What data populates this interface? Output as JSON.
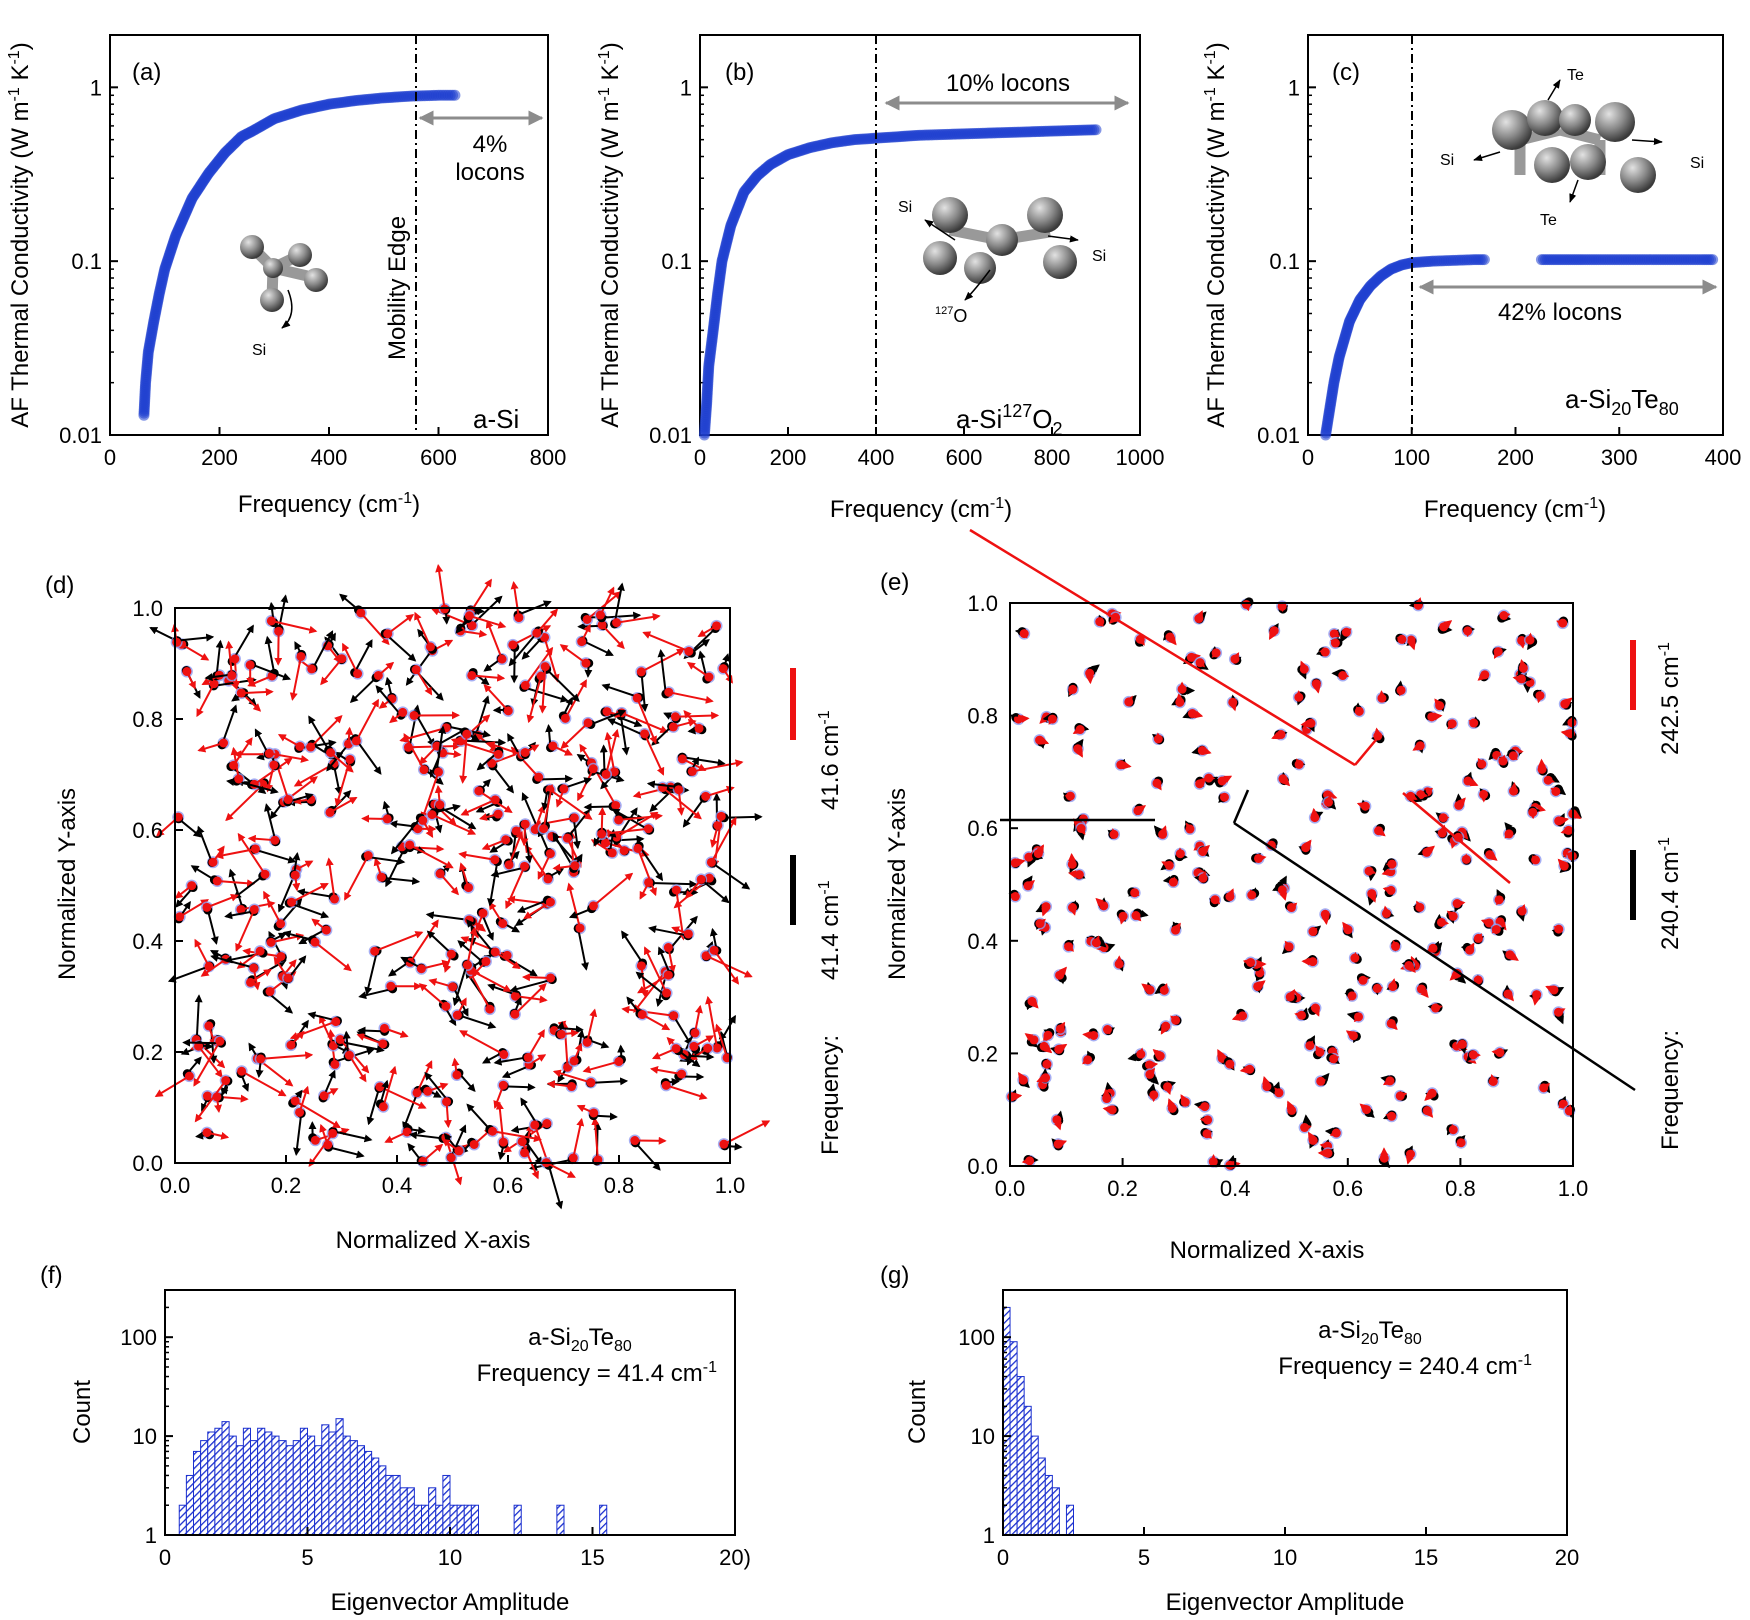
{
  "chart_data": [
    {
      "id": "a",
      "type": "scatter",
      "panel_label": "(a)",
      "xlabel": "Frequency (cm",
      "xlabel_sup": "-1",
      "xlabel_end": ")",
      "ylabel": "AF Thermal Conductivity (W m",
      "ylabel_sup1": "-1",
      "ylabel_mid": " K",
      "ylabel_sup2": "-1",
      "ylabel_end": ")",
      "xlim": [
        0,
        800
      ],
      "ylim": [
        0.01,
        2
      ],
      "yscale": "log",
      "xticks": [
        "0",
        "200",
        "400",
        "600",
        "800"
      ],
      "yticks": [
        {
          "value": 0.01,
          "label": "0.01"
        },
        {
          "value": 0.1,
          "label": "0.1"
        },
        {
          "value": 1,
          "label": "1"
        }
      ],
      "mobility_edge": 550,
      "mobility_edge_label": "Mobility Edge",
      "locon_label_1": "4%",
      "locon_label_2": "locons",
      "locon_range": [
        555,
        790
      ],
      "material": "a-Si",
      "atom_label_si": "Si",
      "series": [
        {
          "name": "AF kappa",
          "x": [
            62,
            65,
            70,
            80,
            90,
            100,
            120,
            150,
            180,
            210,
            240,
            260,
            300,
            350,
            400,
            450,
            500,
            550,
            600,
            630
          ],
          "y": [
            0.013,
            0.02,
            0.03,
            0.045,
            0.065,
            0.09,
            0.14,
            0.23,
            0.32,
            0.42,
            0.52,
            0.56,
            0.66,
            0.74,
            0.8,
            0.84,
            0.87,
            0.89,
            0.9,
            0.9
          ]
        }
      ]
    },
    {
      "id": "b",
      "type": "scatter",
      "panel_label": "(b)",
      "xlabel": "Frequency (cm",
      "xlabel_sup": "-1",
      "xlabel_end": ")",
      "ylabel": "AF Thermal Conductivity (W m",
      "ylabel_sup1": "-1",
      "ylabel_mid": " K",
      "ylabel_sup2": "-1",
      "ylabel_end": ")",
      "xlim": [
        0,
        1000
      ],
      "ylim": [
        0.01,
        2
      ],
      "yscale": "log",
      "xticks": [
        "0",
        "200",
        "400",
        "600",
        "800",
        "1000"
      ],
      "yticks": [
        {
          "value": 0.01,
          "label": "0.01"
        },
        {
          "value": 0.1,
          "label": "0.1"
        },
        {
          "value": 1,
          "label": "1"
        }
      ],
      "mobility_edge": 400,
      "locon_label": "10% locons",
      "locon_range": [
        410,
        990
      ],
      "material_pre": "a-Si",
      "material_sup": "127",
      "material_mid": "O",
      "material_sub": "2",
      "atom_label_si_left": "Si",
      "atom_label_si_right": "Si",
      "atom_label_o_sup": "127",
      "atom_label_o": "O",
      "series": [
        {
          "name": "AF kappa",
          "x": [
            10,
            15,
            20,
            30,
            40,
            50,
            70,
            100,
            130,
            160,
            200,
            250,
            300,
            350,
            400,
            450,
            500,
            600,
            700,
            800,
            900
          ],
          "y": [
            0.01,
            0.015,
            0.025,
            0.04,
            0.065,
            0.1,
            0.16,
            0.25,
            0.31,
            0.36,
            0.41,
            0.45,
            0.48,
            0.5,
            0.51,
            0.52,
            0.53,
            0.54,
            0.55,
            0.56,
            0.57
          ]
        }
      ]
    },
    {
      "id": "c",
      "type": "scatter",
      "panel_label": "(c)",
      "xlabel": "Frequency (cm",
      "xlabel_sup": "-1",
      "xlabel_end": ")",
      "ylabel": "AF Thermal Conductivity (W m",
      "ylabel_sup1": "-1",
      "ylabel_mid": " K",
      "ylabel_sup2": "-1",
      "ylabel_end": ")",
      "xlim": [
        0,
        400
      ],
      "ylim": [
        0.01,
        2
      ],
      "yscale": "log",
      "xticks": [
        "0",
        "100",
        "200",
        "300",
        "400"
      ],
      "yticks": [
        {
          "value": 0.01,
          "label": "0.01"
        },
        {
          "value": 0.1,
          "label": "0.1"
        },
        {
          "value": 1,
          "label": "1"
        }
      ],
      "mobility_edge": 100,
      "locon_label": "42% locons",
      "locon_range": [
        103,
        392
      ],
      "material_pre": "a-Si",
      "material_sub1": "20",
      "material_mid": "Te",
      "material_sub2": "80",
      "atom_label_te_top": "Te",
      "atom_label_te_bottom": "Te",
      "atom_label_si_left": "Si",
      "atom_label_si_right": "Si",
      "series": [
        {
          "name": "AF kappa",
          "x": [
            17,
            20,
            25,
            30,
            40,
            50,
            60,
            70,
            80,
            90,
            100,
            120,
            140,
            160,
            170
          ],
          "y": [
            0.01,
            0.013,
            0.02,
            0.028,
            0.045,
            0.06,
            0.072,
            0.082,
            0.09,
            0.095,
            0.098,
            0.1,
            0.101,
            0.102,
            0.102
          ]
        },
        {
          "name": "AF kappa locons",
          "x": [
            225,
            235,
            245,
            255,
            265,
            280,
            300,
            320,
            340,
            360,
            380,
            390
          ],
          "y": [
            0.102,
            0.102,
            0.102,
            0.102,
            0.102,
            0.102,
            0.102,
            0.102,
            0.102,
            0.102,
            0.102,
            0.102
          ]
        }
      ]
    },
    {
      "id": "d",
      "type": "scatter",
      "panel_label": "(d)",
      "xlabel": "Normalized X-axis",
      "ylabel": "Normalized Y-axis",
      "xlim": [
        0,
        1
      ],
      "ylim": [
        0,
        1
      ],
      "xticks": [
        "0.0",
        "0.2",
        "0.4",
        "0.6",
        "0.8",
        "1.0"
      ],
      "yticks": [
        "0.0",
        "0.2",
        "0.4",
        "0.6",
        "0.8",
        "1.0"
      ],
      "atom_count": 290,
      "arrow_scale": "large (delocalized)",
      "legend_red": "41.6 cm",
      "legend_black": "41.4 cm",
      "legend_sup": "-1",
      "legend_title": "Frequency:"
    },
    {
      "id": "e",
      "type": "scatter",
      "panel_label": "(e)",
      "xlabel": "Normalized X-axis",
      "ylabel": "Normalized Y-axis",
      "xlim": [
        0,
        1
      ],
      "ylim": [
        0,
        1
      ],
      "xticks": [
        "0.0",
        "0.2",
        "0.4",
        "0.6",
        "0.8",
        "1.0"
      ],
      "yticks": [
        "0.0",
        "0.2",
        "0.4",
        "0.6",
        "0.8",
        "1.0"
      ],
      "atom_count": 290,
      "arrow_scale": "small (localized)",
      "legend_red": "242.5 cm",
      "legend_black": "240.4 cm",
      "legend_sup": "-1",
      "legend_title": "Frequency:"
    },
    {
      "id": "f",
      "type": "bar",
      "panel_label": "(f)",
      "xlabel": "Eigenvector Amplitude",
      "ylabel": "Count",
      "xlim": [
        0,
        20
      ],
      "ylim": [
        1,
        300
      ],
      "yscale": "log",
      "xticks": [
        "0",
        "5",
        "10",
        "15",
        "20)"
      ],
      "yticks": [
        {
          "value": 1,
          "label": "1"
        },
        {
          "value": 10,
          "label": "10"
        },
        {
          "value": 100,
          "label": "100"
        }
      ],
      "annotation_pre": "a-Si",
      "annotation_sub1": "20",
      "annotation_mid": "Te",
      "annotation_sub2": "80",
      "annotation_freq": "Frequency = 41.4 cm",
      "annotation_sup": "-1",
      "bin_width": 0.25,
      "bin_starts": [
        0.5,
        0.75,
        1.0,
        1.25,
        1.5,
        1.75,
        2.0,
        2.25,
        2.5,
        2.75,
        3.0,
        3.25,
        3.5,
        3.75,
        4.0,
        4.25,
        4.5,
        4.75,
        5.0,
        5.25,
        5.5,
        5.75,
        6.0,
        6.25,
        6.5,
        6.75,
        7.0,
        7.25,
        7.5,
        7.75,
        8.0,
        8.25,
        8.5,
        8.75,
        9.0,
        9.25,
        9.5,
        9.75,
        10.0,
        10.25,
        10.5,
        10.75,
        12.25,
        13.75,
        15.25
      ],
      "values": [
        2,
        4,
        7,
        9,
        11,
        12,
        14,
        10,
        8,
        12,
        9,
        12,
        11,
        10,
        9,
        8,
        9,
        12,
        10,
        8,
        13,
        11,
        15,
        10,
        9,
        8,
        7,
        6,
        5,
        4,
        4,
        3,
        3,
        2,
        2,
        3,
        2,
        4,
        2,
        2,
        2,
        2,
        2,
        2,
        2
      ]
    },
    {
      "id": "g",
      "type": "bar",
      "panel_label": "(g)",
      "xlabel": "Eigenvector Amplitude",
      "ylabel": "Count",
      "xlim": [
        0,
        20
      ],
      "ylim": [
        1,
        300
      ],
      "yscale": "log",
      "xticks": [
        "0",
        "5",
        "10",
        "15",
        "20"
      ],
      "yticks": [
        {
          "value": 1,
          "label": "1"
        },
        {
          "value": 10,
          "label": "10"
        },
        {
          "value": 100,
          "label": "100"
        }
      ],
      "annotation_pre": "a-Si",
      "annotation_sub1": "20",
      "annotation_mid": "Te",
      "annotation_sub2": "80",
      "annotation_freq": "Frequency = 240.4 cm",
      "annotation_sup": "-1",
      "bin_width": 0.25,
      "bin_starts": [
        0.0,
        0.25,
        0.5,
        0.75,
        1.0,
        1.25,
        1.5,
        1.75,
        2.25
      ],
      "values": [
        200,
        90,
        40,
        20,
        10,
        6,
        4,
        3,
        2
      ]
    }
  ]
}
